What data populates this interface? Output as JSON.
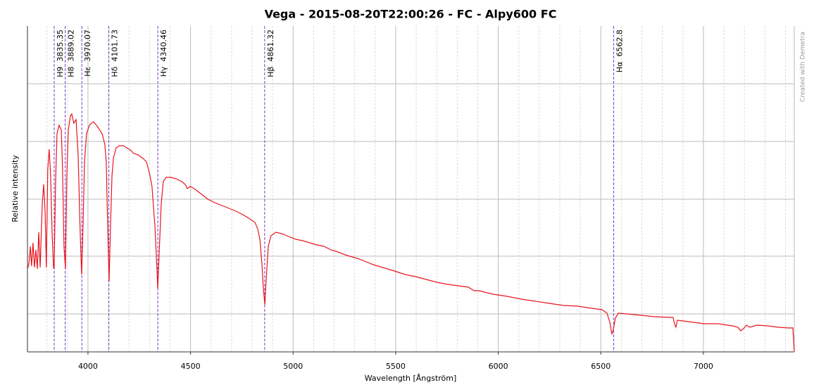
{
  "chart_data": {
    "type": "line",
    "title": "Vega - 2015-08-20T22:00:26 - FC - Alpy600 FC",
    "x_label": "Wavelength [Ångström]",
    "y_label": "Relative intensity",
    "watermark": "Created with Demetra",
    "xlim": [
      3705,
      7443
    ],
    "ylim": [
      0,
      463
    ],
    "xticks": [
      4000,
      4500,
      5000,
      5500,
      6000,
      6500,
      7000
    ],
    "x_minor_step": 100,
    "ygrid": [
      54,
      136,
      217,
      299,
      381
    ],
    "grid": true,
    "line_markers": [
      {
        "label": "H9",
        "x": 3835.35
      },
      {
        "label": "H8",
        "x": 3889.02
      },
      {
        "label": "Hε",
        "x": 3970.07
      },
      {
        "label": "Hδ",
        "x": 4101.73
      },
      {
        "label": "Hγ",
        "x": 4340.46
      },
      {
        "label": "Hβ",
        "x": 4861.32
      },
      {
        "label": "Hα",
        "x": 6562.8
      }
    ],
    "marker_color": "#7a3cc8",
    "series": [
      {
        "color": "#e8141e",
        "x": [
          3705,
          3712,
          3719,
          3725,
          3732,
          3739,
          3746,
          3753,
          3760,
          3767,
          3777,
          3784,
          3791,
          3797,
          3804,
          3811,
          3818,
          3825,
          3832,
          3835,
          3842,
          3849,
          3859,
          3870,
          3876,
          3883,
          3890,
          3897,
          3904,
          3914,
          3921,
          3931,
          3942,
          3952,
          3962,
          3969,
          3976,
          3983,
          3993,
          4007,
          4017,
          4027,
          4041,
          4051,
          4069,
          4082,
          4089,
          4096,
          4103,
          4110,
          4117,
          4124,
          4137,
          4154,
          4172,
          4189,
          4206,
          4223,
          4244,
          4268,
          4285,
          4299,
          4312,
          4326,
          4336,
          4340,
          4347,
          4357,
          4367,
          4381,
          4405,
          4429,
          4457,
          4474,
          4484,
          4498,
          4518,
          4549,
          4584,
          4618,
          4652,
          4687,
          4721,
          4755,
          4789,
          4814,
          4827,
          4838,
          4848,
          4855,
          4862,
          4868,
          4879,
          4892,
          4916,
          4944,
          4978,
          5013,
          5047,
          5081,
          5116,
          5150,
          5184,
          5219,
          5253,
          5287,
          5322,
          5356,
          5390,
          5424,
          5459,
          5493,
          5545,
          5596,
          5648,
          5699,
          5751,
          5802,
          5854,
          5881,
          5905,
          5974,
          6042,
          6111,
          6180,
          6248,
          6317,
          6386,
          6454,
          6506,
          6530,
          6544,
          6554,
          6561,
          6571,
          6585,
          6626,
          6695,
          6763,
          6832,
          6852,
          6859,
          6866,
          6873,
          6900,
          6952,
          7003,
          7072,
          7141,
          7168,
          7182,
          7196,
          7209,
          7227,
          7261,
          7312,
          7364,
          7415,
          7436,
          7443
        ],
        "values": [
          118,
          125,
          150,
          122,
          155,
          120,
          145,
          118,
          170,
          120,
          210,
          238,
          200,
          120,
          260,
          288,
          250,
          170,
          120,
          118,
          240,
          310,
          322,
          315,
          260,
          150,
          118,
          250,
          315,
          335,
          338,
          325,
          330,
          280,
          170,
          110,
          180,
          270,
          310,
          322,
          325,
          327,
          322,
          318,
          310,
          295,
          270,
          180,
          100,
          180,
          250,
          275,
          290,
          293,
          293,
          290,
          287,
          282,
          280,
          275,
          270,
          255,
          235,
          180,
          120,
          90,
          140,
          210,
          242,
          248,
          248,
          246,
          242,
          238,
          232,
          235,
          232,
          225,
          217,
          212,
          208,
          204,
          200,
          195,
          189,
          184,
          175,
          160,
          125,
          90,
          67,
          100,
          150,
          165,
          170,
          168,
          164,
          160,
          158,
          155,
          152,
          150,
          145,
          142,
          138,
          135,
          132,
          128,
          124,
          121,
          118,
          115,
          110,
          107,
          103,
          99,
          96,
          94,
          92,
          87,
          87,
          82,
          79,
          75,
          72,
          69,
          66,
          65,
          62,
          60,
          55,
          42,
          25,
          32,
          48,
          55,
          54,
          52,
          50,
          49,
          49,
          40,
          35,
          45,
          44,
          42,
          40,
          40,
          37,
          35,
          30,
          33,
          38,
          35,
          38,
          37,
          35,
          34,
          34,
          0
        ]
      }
    ]
  }
}
